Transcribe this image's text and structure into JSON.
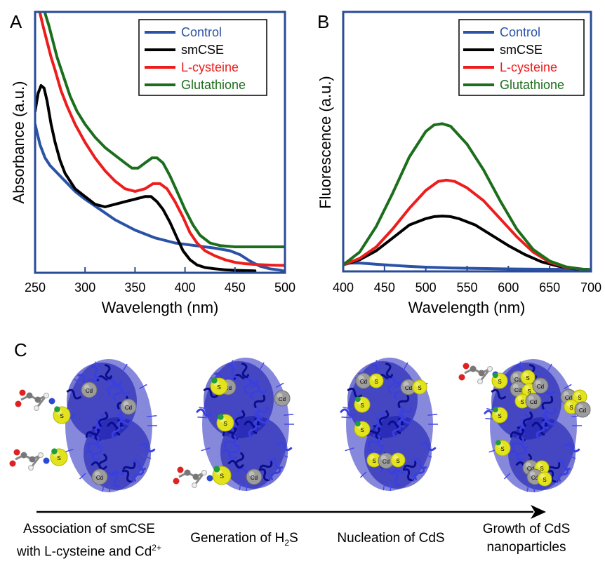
{
  "colors": {
    "control": "#2a52a6",
    "smcse": "#000000",
    "lcysteine": "#ee1c1c",
    "glutathione": "#1c6e1c",
    "frame": "#2a4b96",
    "protein": "#1f22c8",
    "cd_atom": "#9c9c9c",
    "s_atom": "#e3e31d"
  },
  "panel_letters": {
    "a": "A",
    "b": "B",
    "c": "C"
  },
  "chart_data": [
    {
      "type": "line",
      "panel": "A",
      "xlabel": "Wavelength (nm)",
      "ylabel": "Absorbance (a.u.)",
      "xlim": [
        250,
        500
      ],
      "ylim": [
        0,
        1
      ],
      "xticks": [
        250,
        300,
        350,
        400,
        450,
        500
      ],
      "legend": {
        "placement": "top-right",
        "entries": [
          "Control",
          "smCSE",
          "L-cysteine",
          "Glutathione"
        ]
      },
      "series": [
        {
          "name": "Control",
          "key": "control",
          "x": [
            250,
            255,
            260,
            265,
            270,
            280,
            290,
            300,
            315,
            330,
            350,
            370,
            390,
            410,
            430,
            445,
            455,
            465,
            475,
            485,
            495,
            500
          ],
          "y": [
            0.57,
            0.49,
            0.44,
            0.41,
            0.39,
            0.35,
            0.31,
            0.28,
            0.24,
            0.2,
            0.16,
            0.13,
            0.11,
            0.1,
            0.09,
            0.08,
            0.065,
            0.04,
            0.02,
            0.01,
            0.005,
            0.0
          ]
        },
        {
          "name": "smCSE",
          "key": "smcse",
          "x": [
            250,
            253,
            256,
            259,
            262,
            266,
            270,
            275,
            280,
            290,
            300,
            310,
            320,
            330,
            340,
            350,
            360,
            366,
            372,
            378,
            385,
            392,
            398,
            405,
            412,
            420,
            430,
            440,
            450,
            460,
            470
          ],
          "y": [
            0.62,
            0.69,
            0.72,
            0.71,
            0.66,
            0.57,
            0.5,
            0.43,
            0.38,
            0.32,
            0.29,
            0.26,
            0.25,
            0.26,
            0.27,
            0.28,
            0.29,
            0.29,
            0.27,
            0.24,
            0.19,
            0.13,
            0.08,
            0.045,
            0.025,
            0.015,
            0.01,
            0.006,
            0.004,
            0.003,
            0.002
          ]
        },
        {
          "name": "L-cysteine",
          "key": "lcysteine",
          "x": [
            255,
            258,
            262,
            266,
            270,
            276,
            282,
            290,
            300,
            310,
            320,
            330,
            340,
            350,
            360,
            368,
            375,
            382,
            390,
            398,
            405,
            412,
            420,
            430,
            440,
            450,
            460,
            470,
            480,
            490,
            500
          ],
          "y": [
            1.0,
            0.95,
            0.89,
            0.83,
            0.78,
            0.7,
            0.64,
            0.57,
            0.5,
            0.44,
            0.39,
            0.35,
            0.32,
            0.31,
            0.32,
            0.34,
            0.34,
            0.32,
            0.27,
            0.21,
            0.15,
            0.11,
            0.08,
            0.06,
            0.045,
            0.035,
            0.03,
            0.027,
            0.025,
            0.024,
            0.023
          ]
        },
        {
          "name": "Glutathione",
          "key": "glutathione",
          "x": [
            260,
            264,
            268,
            272,
            278,
            285,
            292,
            300,
            310,
            320,
            330,
            340,
            347,
            353,
            360,
            367,
            372,
            378,
            385,
            392,
            400,
            408,
            415,
            425,
            435,
            450,
            465,
            480,
            500
          ],
          "y": [
            1.0,
            0.95,
            0.89,
            0.83,
            0.76,
            0.68,
            0.62,
            0.57,
            0.52,
            0.48,
            0.45,
            0.42,
            0.4,
            0.4,
            0.42,
            0.44,
            0.44,
            0.42,
            0.37,
            0.31,
            0.24,
            0.18,
            0.14,
            0.11,
            0.1,
            0.095,
            0.095,
            0.095,
            0.095
          ]
        }
      ]
    },
    {
      "type": "line",
      "panel": "B",
      "xlabel": "Wavelength (nm)",
      "ylabel": "Fluorescence (a.u.)",
      "xlim": [
        400,
        700
      ],
      "ylim": [
        0,
        1
      ],
      "xticks": [
        400,
        450,
        500,
        550,
        600,
        650,
        700
      ],
      "legend": {
        "placement": "top-right",
        "entries": [
          "Control",
          "smCSE",
          "L-cysteine",
          "Glutathione"
        ]
      },
      "series": [
        {
          "name": "Control",
          "key": "control",
          "x": [
            400,
            410,
            420,
            430,
            440,
            460,
            480,
            500,
            530,
            560,
            600,
            640,
            680,
            700
          ],
          "y": [
            0.025,
            0.027,
            0.027,
            0.025,
            0.022,
            0.018,
            0.014,
            0.011,
            0.008,
            0.006,
            0.004,
            0.003,
            0.002,
            0.002
          ]
        },
        {
          "name": "smCSE",
          "key": "smcse",
          "x": [
            400,
            420,
            440,
            460,
            480,
            500,
            510,
            520,
            530,
            540,
            560,
            580,
            600,
            620,
            640,
            660,
            680,
            700
          ],
          "y": [
            0.02,
            0.04,
            0.075,
            0.125,
            0.175,
            0.2,
            0.208,
            0.21,
            0.208,
            0.2,
            0.175,
            0.135,
            0.095,
            0.06,
            0.032,
            0.015,
            0.005,
            0.001
          ]
        },
        {
          "name": "L-cysteine",
          "key": "lcysteine",
          "x": [
            400,
            420,
            440,
            460,
            480,
            500,
            515,
            525,
            535,
            550,
            570,
            590,
            610,
            630,
            650,
            670,
            690,
            700
          ],
          "y": [
            0.02,
            0.045,
            0.09,
            0.16,
            0.24,
            0.31,
            0.345,
            0.35,
            0.345,
            0.32,
            0.27,
            0.2,
            0.13,
            0.07,
            0.03,
            0.01,
            0.003,
            0.001
          ]
        },
        {
          "name": "Glutathione",
          "key": "glutathione",
          "x": [
            400,
            420,
            440,
            460,
            480,
            500,
            510,
            520,
            530,
            550,
            570,
            590,
            610,
            630,
            650,
            670,
            690,
            700
          ],
          "y": [
            0.02,
            0.07,
            0.17,
            0.3,
            0.44,
            0.54,
            0.565,
            0.57,
            0.56,
            0.49,
            0.39,
            0.27,
            0.16,
            0.08,
            0.035,
            0.012,
            0.003,
            0.001
          ]
        }
      ]
    }
  ],
  "legend_labels": {
    "control": "Control",
    "smcse": "smCSE",
    "lcysteine": "L-cysteine",
    "glutathione": "Glutathione"
  },
  "panel_c": {
    "stage_captions": [
      {
        "line1": "Association of smCSE",
        "line2_main": "with L-cysteine and Cd",
        "line2_sup": "2+"
      },
      {
        "main": "Generation of H",
        "sub": "2",
        "tail": "S"
      },
      {
        "main": "Nucleation of CdS"
      },
      {
        "line1": "Growth of CdS",
        "line2": "nanoparticles"
      }
    ],
    "atom_labels": {
      "cd": "Cd",
      "s": "S"
    }
  }
}
